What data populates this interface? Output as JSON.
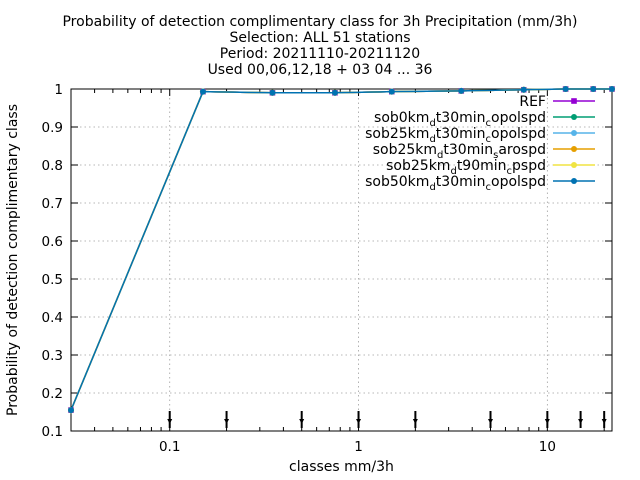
{
  "chart_data": {
    "type": "line",
    "title_lines": [
      "Probability of detection complimentary class  for 3h Precipitation (mm/3h)",
      "Selection: ALL     51 stations",
      "Period: 20211110-20211120",
      "Used 00,06,12,18 + 03 04 ... 36"
    ],
    "xlabel": "classes mm/3h",
    "ylabel": "Probability of detection complimentary class",
    "x_scale": "log",
    "xlim": [
      0.03,
      22
    ],
    "ylim": [
      0.1,
      1.0
    ],
    "x_ticks": [
      0.1,
      1,
      10
    ],
    "x_tick_labels": [
      "0.1",
      "1",
      "10"
    ],
    "y_ticks": [
      0.1,
      0.2,
      0.3,
      0.4,
      0.5,
      0.6,
      0.7,
      0.8,
      0.9,
      1
    ],
    "y_tick_labels": [
      "0.1",
      "0.2",
      "0.3",
      "0.4",
      "0.5",
      "0.6",
      "0.7",
      "0.8",
      "0.9",
      "1"
    ],
    "grid": true,
    "legend_position": "top-right",
    "x": [
      0.03,
      0.15,
      0.35,
      0.75,
      1.5,
      3.5,
      7.5,
      12.5,
      17.5,
      22
    ],
    "series": [
      {
        "name": "REF",
        "color": "#9400d3",
        "marker": "square",
        "values": [
          0.155,
          0.993,
          0.99,
          0.99,
          0.993,
          0.995,
          0.998,
          1.0,
          1.0,
          1.0
        ]
      },
      {
        "name": "sob0kmdt30mincopolspd",
        "color": "#009e73",
        "marker": "circle",
        "values": [
          0.155,
          0.993,
          0.99,
          0.99,
          0.993,
          0.995,
          0.998,
          1.0,
          1.0,
          1.0
        ]
      },
      {
        "name": "sob25kmdt30mincopolspd",
        "color": "#56b4e9",
        "marker": "circle",
        "values": [
          0.155,
          0.993,
          0.99,
          0.99,
          0.993,
          0.995,
          0.998,
          1.0,
          1.0,
          1.0
        ]
      },
      {
        "name": "sob25kmdt30minsarospd",
        "color": "#e69f00",
        "marker": "circle",
        "values": [
          0.155,
          0.993,
          0.99,
          0.99,
          0.993,
          0.995,
          0.998,
          1.0,
          1.0,
          1.0
        ]
      },
      {
        "name": "sob25kmdt90mincpspd",
        "color": "#f0e442",
        "marker": "circle",
        "values": [
          0.155,
          0.993,
          0.99,
          0.99,
          0.993,
          0.995,
          0.998,
          1.0,
          1.0,
          1.0
        ]
      },
      {
        "name": "sob50kmdt30mincopolspd",
        "color": "#0072b2",
        "marker": "circle",
        "values": [
          0.155,
          0.993,
          0.99,
          0.99,
          0.993,
          0.995,
          0.998,
          1.0,
          1.0,
          1.0
        ]
      }
    ],
    "legend_labels": [
      {
        "main": "REF"
      },
      {
        "main": "sob0km",
        "sub1": "d",
        "mid": "t30min",
        "sub2": "c",
        "end": "opolspd"
      },
      {
        "main": "sob25km",
        "sub1": "d",
        "mid": "t30min",
        "sub2": "c",
        "end": "opolspd"
      },
      {
        "main": "sob25km",
        "sub1": "d",
        "mid": "t30min",
        "sub2": "s",
        "end": "arospd"
      },
      {
        "main": "sob25km",
        "sub1": "d",
        "mid": "t90min",
        "sub2": "c",
        "end": "pspd"
      },
      {
        "main": "sob50km",
        "sub1": "d",
        "mid": "t30min",
        "sub2": "c",
        "end": "opolspd"
      }
    ],
    "class_limits": [
      0.1,
      0.2,
      0.5,
      1,
      2,
      5,
      10,
      15,
      20
    ]
  }
}
